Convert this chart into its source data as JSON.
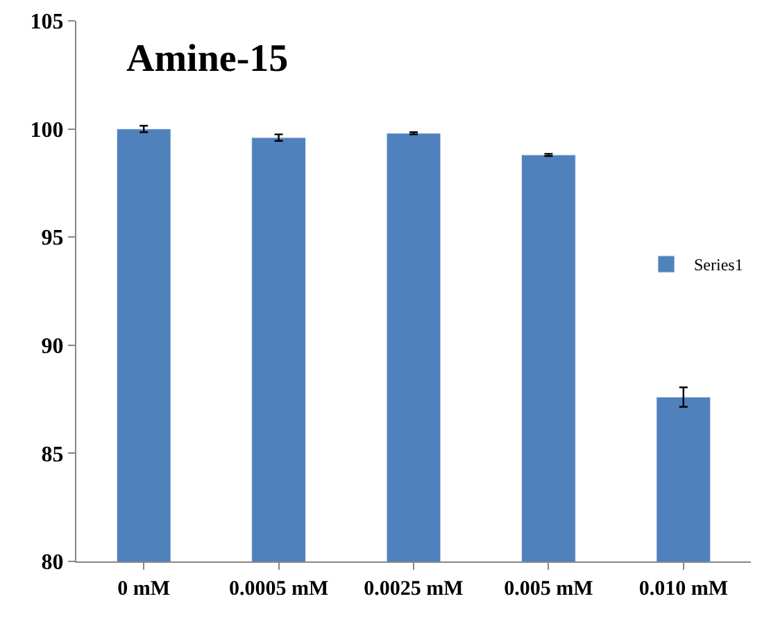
{
  "chart_data": {
    "type": "bar",
    "title": "Amine-15",
    "categories": [
      "0 mM",
      "0.0005 mM",
      "0.0025 mM",
      "0.005 mM",
      "0.010 mM"
    ],
    "series": [
      {
        "name": "Series1",
        "color": "#4f81bd",
        "values": [
          100.0,
          99.6,
          99.8,
          98.8,
          87.6
        ],
        "errors": [
          0.15,
          0.15,
          0.05,
          0.05,
          0.45
        ]
      }
    ],
    "ylim": [
      80,
      105
    ],
    "yticks": [
      80,
      85,
      90,
      95,
      100,
      105
    ],
    "grid": false,
    "legend": "right"
  }
}
